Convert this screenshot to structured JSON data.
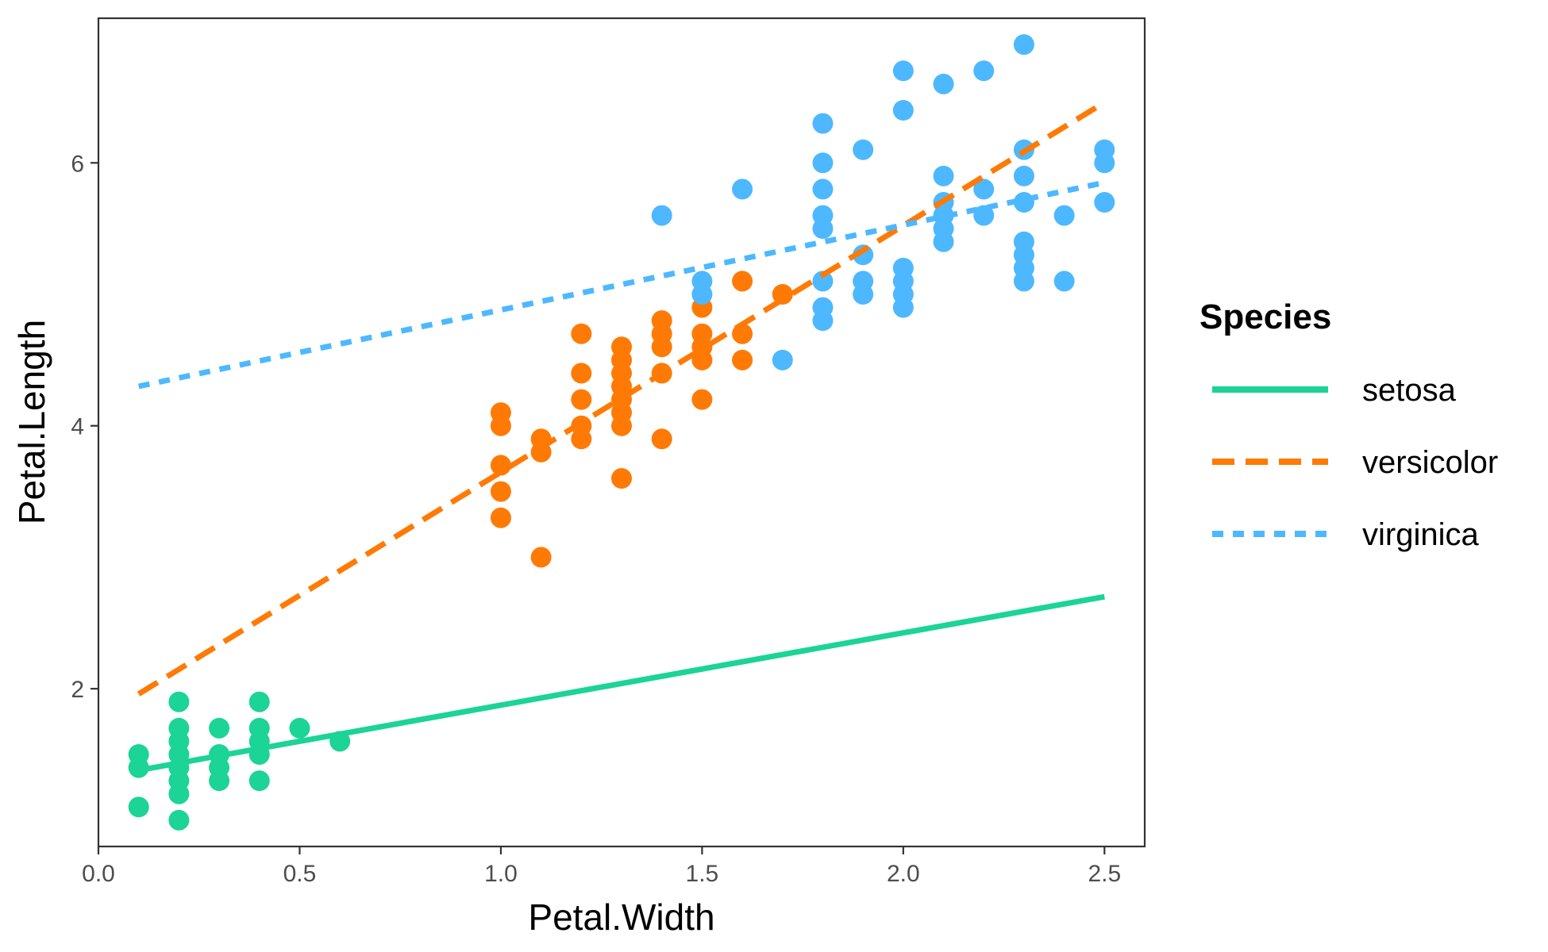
{
  "chart_data": {
    "type": "scatter",
    "xlabel": "Petal.Width",
    "ylabel": "Petal.Length",
    "xlim": [
      0.0,
      2.6
    ],
    "ylim": [
      0.8,
      7.1
    ],
    "x_ticks": [
      0.0,
      0.5,
      1.0,
      1.5,
      2.0,
      2.5
    ],
    "x_tick_labels": [
      "0.0",
      "0.5",
      "1.0",
      "1.5",
      "2.0",
      "2.5"
    ],
    "y_ticks": [
      2,
      4,
      6
    ],
    "y_tick_labels": [
      "2",
      "4",
      "6"
    ],
    "grid": false,
    "legend": {
      "title": "Species",
      "position": "right",
      "entries": [
        "setosa",
        "versicolor",
        "virginica"
      ]
    },
    "series": [
      {
        "name": "setosa",
        "color": "#1bd495",
        "line_style": "solid",
        "fit_line": {
          "x": [
            0.1,
            2.5
          ],
          "y": [
            1.38,
            2.7
          ]
        },
        "points": [
          [
            0.1,
            1.5
          ],
          [
            0.1,
            1.4
          ],
          [
            0.1,
            1.1
          ],
          [
            0.2,
            1.9
          ],
          [
            0.2,
            1.7
          ],
          [
            0.2,
            1.6
          ],
          [
            0.2,
            1.5
          ],
          [
            0.2,
            1.4
          ],
          [
            0.2,
            1.3
          ],
          [
            0.2,
            1.2
          ],
          [
            0.2,
            1.0
          ],
          [
            0.3,
            1.7
          ],
          [
            0.3,
            1.5
          ],
          [
            0.3,
            1.4
          ],
          [
            0.3,
            1.3
          ],
          [
            0.4,
            1.9
          ],
          [
            0.4,
            1.7
          ],
          [
            0.4,
            1.6
          ],
          [
            0.4,
            1.5
          ],
          [
            0.4,
            1.3
          ],
          [
            0.5,
            1.7
          ],
          [
            0.6,
            1.6
          ]
        ]
      },
      {
        "name": "versicolor",
        "color": "#ff7a05",
        "line_style": "dashed",
        "fit_line": {
          "x": [
            0.1,
            2.5
          ],
          "y": [
            1.96,
            6.46
          ]
        },
        "points": [
          [
            1.0,
            4.1
          ],
          [
            1.0,
            4.0
          ],
          [
            1.0,
            3.7
          ],
          [
            1.0,
            3.5
          ],
          [
            1.0,
            3.3
          ],
          [
            1.1,
            3.9
          ],
          [
            1.1,
            3.8
          ],
          [
            1.1,
            3.0
          ],
          [
            1.2,
            4.7
          ],
          [
            1.2,
            4.4
          ],
          [
            1.2,
            4.2
          ],
          [
            1.2,
            4.0
          ],
          [
            1.2,
            3.9
          ],
          [
            1.3,
            4.6
          ],
          [
            1.3,
            4.5
          ],
          [
            1.3,
            4.4
          ],
          [
            1.3,
            4.3
          ],
          [
            1.3,
            4.2
          ],
          [
            1.3,
            4.1
          ],
          [
            1.3,
            4.0
          ],
          [
            1.3,
            3.6
          ],
          [
            1.4,
            4.8
          ],
          [
            1.4,
            4.7
          ],
          [
            1.4,
            4.6
          ],
          [
            1.4,
            4.4
          ],
          [
            1.4,
            3.9
          ],
          [
            1.5,
            4.9
          ],
          [
            1.5,
            4.7
          ],
          [
            1.5,
            4.6
          ],
          [
            1.5,
            4.5
          ],
          [
            1.5,
            4.2
          ],
          [
            1.6,
            5.1
          ],
          [
            1.6,
            4.7
          ],
          [
            1.6,
            4.5
          ],
          [
            1.7,
            5.0
          ]
        ]
      },
      {
        "name": "virginica",
        "color": "#4db8ff",
        "line_style": "dotted",
        "fit_line": {
          "x": [
            0.1,
            2.5
          ],
          "y": [
            4.3,
            5.85
          ]
        },
        "points": [
          [
            1.4,
            5.6
          ],
          [
            1.5,
            5.1
          ],
          [
            1.5,
            5.0
          ],
          [
            1.6,
            5.8
          ],
          [
            1.7,
            4.5
          ],
          [
            1.8,
            6.3
          ],
          [
            1.8,
            6.0
          ],
          [
            1.8,
            5.8
          ],
          [
            1.8,
            5.6
          ],
          [
            1.8,
            5.5
          ],
          [
            1.8,
            5.1
          ],
          [
            1.8,
            4.9
          ],
          [
            1.8,
            4.8
          ],
          [
            1.9,
            6.1
          ],
          [
            1.9,
            5.3
          ],
          [
            1.9,
            5.1
          ],
          [
            1.9,
            5.0
          ],
          [
            2.0,
            6.7
          ],
          [
            2.0,
            6.4
          ],
          [
            2.0,
            5.2
          ],
          [
            2.0,
            5.1
          ],
          [
            2.0,
            5.0
          ],
          [
            2.0,
            4.9
          ],
          [
            2.1,
            6.6
          ],
          [
            2.1,
            5.9
          ],
          [
            2.1,
            5.7
          ],
          [
            2.1,
            5.6
          ],
          [
            2.1,
            5.5
          ],
          [
            2.1,
            5.4
          ],
          [
            2.2,
            6.7
          ],
          [
            2.2,
            5.8
          ],
          [
            2.2,
            5.6
          ],
          [
            2.3,
            6.9
          ],
          [
            2.3,
            6.1
          ],
          [
            2.3,
            5.9
          ],
          [
            2.3,
            5.7
          ],
          [
            2.3,
            5.4
          ],
          [
            2.3,
            5.3
          ],
          [
            2.3,
            5.2
          ],
          [
            2.3,
            5.1
          ],
          [
            2.4,
            5.6
          ],
          [
            2.4,
            5.1
          ],
          [
            2.5,
            6.1
          ],
          [
            2.5,
            6.0
          ],
          [
            2.5,
            5.7
          ]
        ]
      }
    ]
  }
}
